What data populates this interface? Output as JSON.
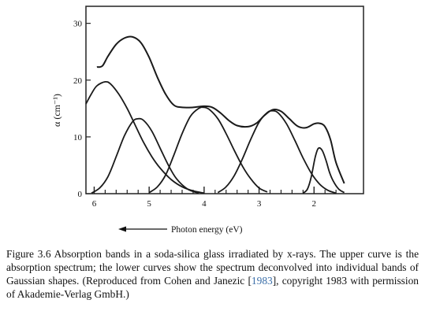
{
  "chart_data": {
    "type": "line",
    "title": "",
    "ylabel": "α (cm⁻¹)",
    "xlabel": "Photon energy (eV)",
    "x_reversed": true,
    "xlim": [
      6.15,
      1.1
    ],
    "ylim": [
      0,
      33
    ],
    "x_ticks": [
      6,
      5,
      4,
      3,
      2
    ],
    "x_tick_labels": [
      "6",
      "5",
      "4",
      "3",
      "2"
    ],
    "y_ticks": [
      0,
      10,
      20,
      30
    ],
    "y_tick_labels": [
      "0",
      "10",
      "20",
      "30"
    ],
    "minor_x_ticks": [
      5.8,
      5.6,
      5.4,
      5.2,
      4.8,
      4.6,
      4.4,
      4.2,
      3.8,
      3.6,
      3.4,
      3.2,
      2.8,
      2.6,
      2.4,
      2.2,
      1.8,
      1.6
    ],
    "grid": false,
    "arrow_direction": "left",
    "series": [
      {
        "role": "absorption spectrum",
        "points": [
          [
            5.95,
            22.3
          ],
          [
            5.85,
            22.5
          ],
          [
            5.75,
            24.2
          ],
          [
            5.6,
            26.3
          ],
          [
            5.45,
            27.4
          ],
          [
            5.3,
            27.6
          ],
          [
            5.15,
            26.6
          ],
          [
            5.0,
            24.0
          ],
          [
            4.85,
            20.5
          ],
          [
            4.7,
            17.5
          ],
          [
            4.55,
            15.6
          ],
          [
            4.4,
            15.2
          ],
          [
            4.2,
            15.2
          ],
          [
            4.0,
            15.4
          ],
          [
            3.85,
            15.2
          ],
          [
            3.7,
            14.2
          ],
          [
            3.55,
            12.9
          ],
          [
            3.4,
            12.0
          ],
          [
            3.2,
            11.8
          ],
          [
            3.05,
            12.4
          ],
          [
            2.9,
            13.8
          ],
          [
            2.75,
            14.8
          ],
          [
            2.6,
            14.5
          ],
          [
            2.45,
            13.2
          ],
          [
            2.3,
            11.9
          ],
          [
            2.15,
            11.6
          ],
          [
            2.0,
            12.3
          ],
          [
            1.9,
            12.4
          ],
          [
            1.8,
            11.8
          ],
          [
            1.7,
            9.5
          ],
          [
            1.6,
            5.5
          ],
          [
            1.45,
            1.8
          ]
        ]
      },
      {
        "role": "gaussian band",
        "points": [
          [
            6.15,
            15.8
          ],
          [
            6.05,
            17.6
          ],
          [
            5.95,
            19.0
          ],
          [
            5.8,
            19.7
          ],
          [
            5.7,
            19.3
          ],
          [
            5.55,
            17.5
          ],
          [
            5.4,
            15.0
          ],
          [
            5.25,
            12.0
          ],
          [
            5.1,
            9.0
          ],
          [
            4.95,
            6.5
          ],
          [
            4.8,
            4.5
          ],
          [
            4.6,
            2.5
          ],
          [
            4.4,
            1.2
          ],
          [
            4.2,
            0.5
          ],
          [
            4.0,
            0.1
          ]
        ]
      },
      {
        "role": "gaussian band",
        "points": [
          [
            6.05,
            0.1
          ],
          [
            5.9,
            1.0
          ],
          [
            5.75,
            3.0
          ],
          [
            5.6,
            6.5
          ],
          [
            5.45,
            10.2
          ],
          [
            5.3,
            12.7
          ],
          [
            5.2,
            13.2
          ],
          [
            5.1,
            12.9
          ],
          [
            4.95,
            11.0
          ],
          [
            4.8,
            8.0
          ],
          [
            4.65,
            5.0
          ],
          [
            4.5,
            2.6
          ],
          [
            4.3,
            0.8
          ],
          [
            4.1,
            0.1
          ]
        ]
      },
      {
        "role": "gaussian band",
        "points": [
          [
            5.0,
            0.2
          ],
          [
            4.85,
            1.2
          ],
          [
            4.7,
            3.3
          ],
          [
            4.55,
            6.8
          ],
          [
            4.4,
            10.6
          ],
          [
            4.25,
            13.6
          ],
          [
            4.1,
            15.0
          ],
          [
            4.0,
            15.2
          ],
          [
            3.9,
            14.8
          ],
          [
            3.75,
            13.2
          ],
          [
            3.6,
            10.6
          ],
          [
            3.45,
            7.6
          ],
          [
            3.3,
            4.8
          ],
          [
            3.15,
            2.6
          ],
          [
            3.0,
            1.0
          ],
          [
            2.85,
            0.3
          ]
        ]
      },
      {
        "role": "gaussian band",
        "points": [
          [
            3.75,
            0.2
          ],
          [
            3.6,
            1.2
          ],
          [
            3.45,
            3.2
          ],
          [
            3.3,
            6.2
          ],
          [
            3.15,
            9.6
          ],
          [
            3.0,
            12.6
          ],
          [
            2.85,
            14.3
          ],
          [
            2.75,
            14.6
          ],
          [
            2.65,
            14.2
          ],
          [
            2.5,
            12.3
          ],
          [
            2.35,
            9.4
          ],
          [
            2.2,
            6.3
          ],
          [
            2.05,
            3.6
          ],
          [
            1.9,
            1.7
          ],
          [
            1.75,
            0.6
          ],
          [
            1.6,
            0.1
          ]
        ]
      },
      {
        "role": "gaussian band",
        "points": [
          [
            2.2,
            0.1
          ],
          [
            2.12,
            0.8
          ],
          [
            2.05,
            3.0
          ],
          [
            1.98,
            6.4
          ],
          [
            1.92,
            8.0
          ],
          [
            1.85,
            7.6
          ],
          [
            1.78,
            5.8
          ],
          [
            1.72,
            3.8
          ],
          [
            1.65,
            2.2
          ],
          [
            1.55,
            0.8
          ],
          [
            1.45,
            0.2
          ]
        ]
      }
    ]
  },
  "caption": {
    "label": "Figure 3.6",
    "text_before_citation": "Absorption bands in a soda-silica glass irradiated by x-rays. The upper curve is the absorption spectrum; the lower curves show the spectrum deconvolved into individual bands of Gaussian shapes. (Reproduced from Cohen and Janezic [",
    "citation_year": "1983",
    "text_after_citation": "], copyright 1983 with permission of Akademie-Verlag GmbH.)"
  }
}
